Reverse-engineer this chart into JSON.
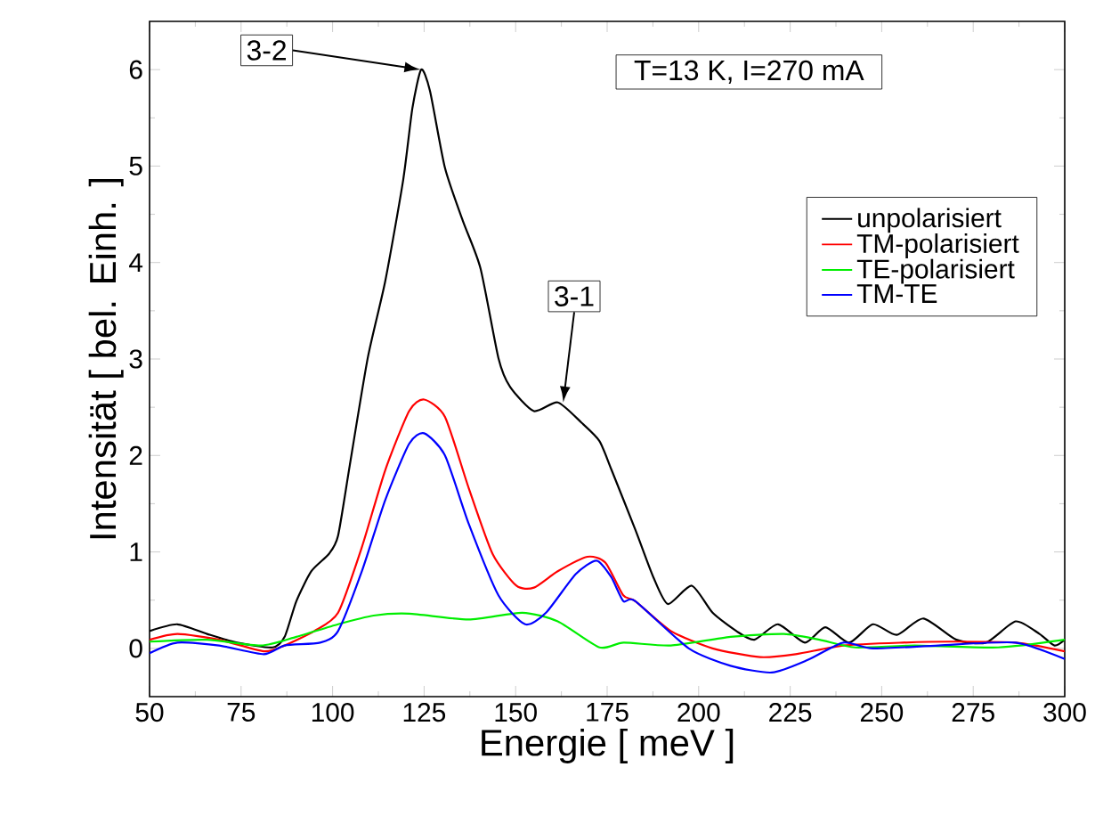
{
  "chart_data": {
    "type": "line",
    "xlabel": "Energie [ meV ]",
    "ylabel": "Intensität [ bel. Einh. ]",
    "xlim": [
      50,
      300
    ],
    "ylim": [
      -0.5,
      6.5
    ],
    "xticks": [
      50,
      75,
      100,
      125,
      150,
      175,
      200,
      225,
      250,
      275,
      300
    ],
    "yticks": [
      0,
      1,
      2,
      3,
      4,
      5,
      6
    ],
    "grid": false,
    "legend": "right",
    "marker": "none",
    "line_style": "solid",
    "annotations": [
      {
        "text": "3-2",
        "x": 124,
        "y": 6.0
      },
      {
        "text": "3-1",
        "x": 163,
        "y": 2.55
      },
      "T=13 K, I=270 mA"
    ],
    "series": [
      {
        "name": "unpolarisiert",
        "color": "#000000",
        "x": [
          50,
          57.6,
          65.7,
          73.9,
          83.6,
          86.9,
          90.1,
          94.2,
          99,
          101.5,
          104.7,
          109.6,
          114.4,
          119.3,
          121.8,
          124.2,
          126.6,
          130.7,
          135.6,
          140.4,
          145.3,
          148.5,
          155,
          161.5,
          168,
          172.9,
          176.2,
          182.7,
          187.6,
          191.6,
          198.1,
          203.8,
          210.3,
          215.2,
          221.7,
          229,
          234.6,
          241.1,
          247.6,
          254.1,
          261.4,
          270.4,
          278.5,
          286.6,
          293.1,
          297.2,
          300
        ],
        "values": [
          0.18,
          0.25,
          0.15,
          0.06,
          0.01,
          0.12,
          0.49,
          0.8,
          0.98,
          1.17,
          1.9,
          3.01,
          3.81,
          4.86,
          5.6,
          6.0,
          5.78,
          4.98,
          4.43,
          3.94,
          3.01,
          2.71,
          2.46,
          2.55,
          2.34,
          2.15,
          1.85,
          1.23,
          0.74,
          0.46,
          0.65,
          0.37,
          0.18,
          0.09,
          0.25,
          0.06,
          0.22,
          0.06,
          0.25,
          0.14,
          0.31,
          0.09,
          0.06,
          0.28,
          0.15,
          0.03,
          0.09
        ]
      },
      {
        "name": "TM-polarisiert",
        "color": "#ff0000",
        "x": [
          50,
          57.6,
          69,
          81.2,
          86.9,
          95,
          101.5,
          108,
          114.4,
          120.9,
          125,
          130.7,
          137.2,
          143.7,
          150.2,
          155,
          161.5,
          169.6,
          174.5,
          179.4,
          182.7,
          192.4,
          203.8,
          216.8,
          226.5,
          239.5,
          255.7,
          268.7,
          286.6,
          300
        ],
        "values": [
          0.09,
          0.15,
          0.09,
          -0.03,
          0.03,
          0.18,
          0.37,
          1.05,
          1.85,
          2.46,
          2.58,
          2.4,
          1.66,
          0.98,
          0.65,
          0.63,
          0.8,
          0.95,
          0.89,
          0.55,
          0.49,
          0.18,
          0,
          -0.09,
          -0.06,
          0.03,
          0.06,
          0.07,
          0.06,
          -0.03
        ]
      },
      {
        "name": "TE-polarisiert",
        "color": "#00ee00",
        "x": [
          50,
          65.7,
          80.4,
          90.1,
          101.5,
          111.2,
          120.9,
          137.2,
          151.8,
          161.5,
          172.9,
          179.5,
          192.4,
          208.7,
          223.3,
          233,
          242.8,
          259,
          281.8,
          300
        ],
        "values": [
          0.07,
          0.09,
          0.03,
          0.12,
          0.25,
          0.34,
          0.36,
          0.3,
          0.37,
          0.28,
          0.01,
          0.06,
          0.03,
          0.12,
          0.15,
          0.09,
          0.01,
          0.03,
          0.01,
          0.09
        ]
      },
      {
        "name": "TM-TE",
        "color": "#0000ff",
        "x": [
          50,
          57.6,
          69,
          81.2,
          86.9,
          96.6,
          101.5,
          108,
          114.4,
          120.9,
          125,
          130.7,
          137.2,
          145.3,
          152.6,
          158.3,
          166.4,
          172.1,
          176.1,
          179.4,
          182.7,
          197.3,
          208.7,
          220,
          229.8,
          239.5,
          247.6,
          265.5,
          286.6,
          300
        ],
        "values": [
          -0.05,
          0.06,
          0.03,
          -0.06,
          0.03,
          0.06,
          0.18,
          0.8,
          1.54,
          2.12,
          2.23,
          2.0,
          1.29,
          0.55,
          0.25,
          0.37,
          0.77,
          0.91,
          0.74,
          0.49,
          0.49,
          0,
          -0.18,
          -0.25,
          -0.12,
          0.06,
          0,
          0.03,
          0.06,
          -0.11
        ]
      }
    ]
  }
}
